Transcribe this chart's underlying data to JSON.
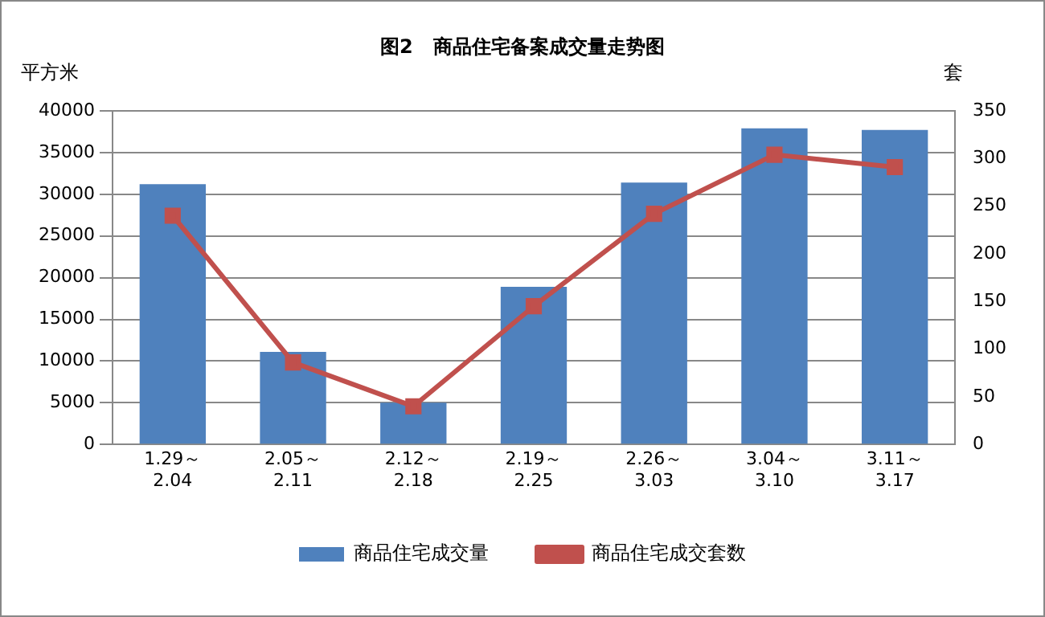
{
  "chart_data": {
    "type": "bar",
    "title": "图2   商品住宅备案成交量走势图",
    "ylabel": "平方米",
    "y2label": "套",
    "categories": [
      "1.29～\n2.04",
      "2.05～\n2.11",
      "2.12～\n2.18",
      "2.19～\n2.25",
      "2.26～\n3.03",
      "3.04～\n3.10",
      "3.11～\n3.17"
    ],
    "series": [
      {
        "name": "商品住宅成交量",
        "color": "#4f81bd",
        "values": [
          31200,
          11100,
          5000,
          18900,
          31400,
          37900,
          37700
        ]
      },
      {
        "name": "商品住宅成交套数",
        "type": "line",
        "axis": "y2",
        "color": "#c0504d",
        "marker": "square",
        "values": [
          240,
          86,
          40,
          145,
          242,
          304,
          291
        ]
      }
    ],
    "ylim": [
      0,
      40000
    ],
    "yticks": [
      0,
      5000,
      10000,
      15000,
      20000,
      25000,
      30000,
      35000,
      40000
    ],
    "y2lim": [
      0,
      350
    ],
    "y2ticks": [
      0,
      50,
      100,
      150,
      200,
      250,
      300,
      350
    ],
    "grid": "y",
    "legend": "bottom"
  }
}
